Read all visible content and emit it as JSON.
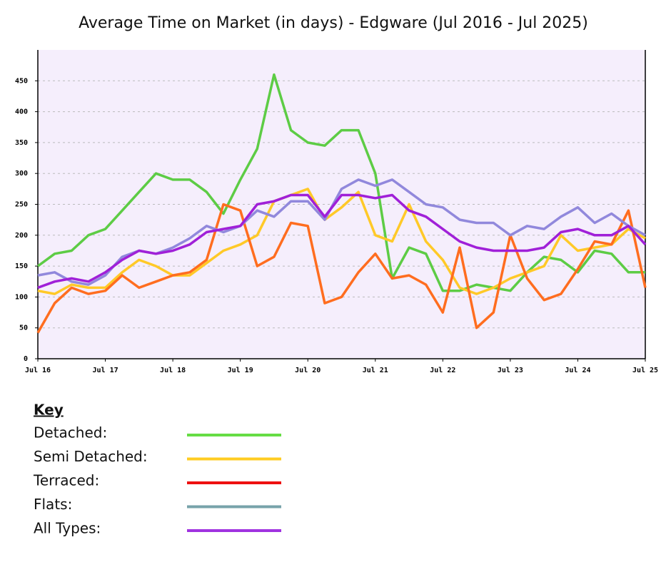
{
  "chart_data": {
    "type": "line",
    "title": "Average Time on Market (in days) - Edgware (Jul 2016 - Jul 2025)",
    "legend_title": "Key",
    "categories": [
      "Jul 16",
      null,
      null,
      null,
      "Jul 17",
      null,
      null,
      null,
      "Jul 18",
      null,
      null,
      null,
      "Jul 19",
      null,
      null,
      null,
      "Jul 20",
      null,
      null,
      null,
      "Jul 21",
      null,
      null,
      null,
      "Jul 22",
      null,
      null,
      null,
      "Jul 23",
      null,
      null,
      null,
      "Jul 24",
      null,
      null,
      null,
      "Jul 25"
    ],
    "ylim": [
      0,
      500
    ],
    "yticks": [
      0,
      50,
      100,
      150,
      200,
      250,
      300,
      350,
      400,
      450
    ],
    "grid": true,
    "background": "#f5eefc",
    "series": [
      {
        "name": "Detached:",
        "color": "#5dcc45",
        "key_color": "#66dd44",
        "values": [
          150,
          170,
          175,
          200,
          210,
          240,
          270,
          300,
          290,
          290,
          270,
          235,
          290,
          340,
          460,
          370,
          350,
          345,
          370,
          370,
          300,
          130,
          180,
          170,
          110,
          110,
          120,
          115,
          110,
          140,
          165,
          160,
          140,
          175,
          170,
          140,
          140
        ]
      },
      {
        "name": "Semi Detached:",
        "color": "#ffc928",
        "key_color": "#ffcc22",
        "values": [
          110,
          105,
          120,
          115,
          115,
          140,
          160,
          150,
          135,
          135,
          155,
          175,
          185,
          200,
          255,
          265,
          275,
          225,
          245,
          270,
          200,
          190,
          250,
          190,
          160,
          115,
          105,
          115,
          130,
          140,
          150,
          200,
          175,
          180,
          185,
          210,
          195
        ]
      },
      {
        "name": "Terraced:",
        "color": "#ff6d1f",
        "key_color": "#ee1111",
        "values": [
          42,
          90,
          115,
          105,
          110,
          135,
          115,
          125,
          135,
          140,
          160,
          250,
          240,
          150,
          165,
          220,
          215,
          90,
          100,
          140,
          170,
          130,
          135,
          120,
          75,
          180,
          50,
          75,
          200,
          130,
          95,
          105,
          145,
          190,
          185,
          240,
          115
        ]
      },
      {
        "name": "Flats:",
        "color": "#9188dc",
        "key_color": "#77a3aa",
        "values": [
          135,
          140,
          125,
          120,
          135,
          165,
          175,
          170,
          180,
          195,
          215,
          205,
          215,
          240,
          230,
          255,
          255,
          225,
          275,
          290,
          280,
          290,
          270,
          250,
          245,
          225,
          220,
          220,
          200,
          215,
          210,
          230,
          245,
          220,
          235,
          215,
          200
        ]
      },
      {
        "name": "All Types:",
        "color": "#a020d8",
        "key_color": "#a033e0",
        "values": [
          115,
          125,
          130,
          125,
          140,
          160,
          175,
          170,
          175,
          185,
          205,
          210,
          215,
          250,
          255,
          265,
          265,
          230,
          265,
          265,
          260,
          265,
          240,
          230,
          210,
          190,
          180,
          175,
          175,
          175,
          180,
          205,
          210,
          200,
          200,
          215,
          185
        ]
      }
    ]
  }
}
